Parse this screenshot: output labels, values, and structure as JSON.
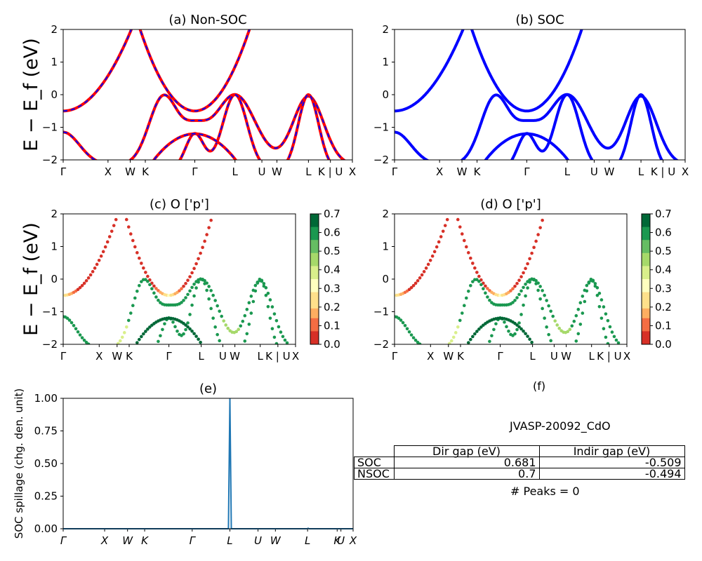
{
  "chart_data": [
    {
      "panel": "a",
      "type": "line",
      "title": "(a) Non-SOC",
      "ylabel": "E − E_f (eV)",
      "ylim": [
        -2,
        2
      ],
      "yticks": [
        "2",
        "1",
        "0",
        "−1",
        "−2"
      ],
      "kpath_labels": [
        "Γ",
        "X",
        "W",
        "K",
        "Γ",
        "L",
        "U",
        "W",
        "L",
        "K | U",
        "X"
      ],
      "kpath_positions": [
        0,
        0.155,
        0.232,
        0.284,
        0.455,
        0.594,
        0.687,
        0.739,
        0.848,
        0.924,
        1.0
      ],
      "series": [
        {
          "color": "#ff0000",
          "style": "solid",
          "bands": "cdo_bands"
        },
        {
          "color": "#0000ff",
          "style": "dashed",
          "bands": "cdo_bands"
        }
      ]
    },
    {
      "panel": "b",
      "type": "line",
      "title": "(b) SOC",
      "ylim": [
        -2,
        2
      ],
      "yticks": [
        "2",
        "1",
        "0",
        "−1",
        "−2"
      ],
      "kpath_labels": [
        "Γ",
        "X",
        "W",
        "K",
        "Γ",
        "L",
        "U",
        "W",
        "L",
        "K | U",
        "X"
      ],
      "series": [
        {
          "color": "#0000ff",
          "style": "solid",
          "bands": "cdo_bands"
        }
      ]
    },
    {
      "panel": "c",
      "type": "scatter",
      "title": "(c)  O ['p']",
      "ylabel": "E − E_f (eV)",
      "ylim": [
        -2,
        2
      ],
      "yticks": [
        "2",
        "1",
        "0",
        "−1",
        "−2"
      ],
      "kpath_labels": [
        "Γ",
        "X",
        "W",
        "K",
        "Γ",
        "L",
        "U",
        "W",
        "L",
        "K | U",
        "X"
      ],
      "colorbar": {
        "min": 0.0,
        "max": 0.7,
        "ticks": [
          "0.7",
          "0.6",
          "0.5",
          "0.4",
          "0.3",
          "0.2",
          "0.1",
          "0.0"
        ],
        "colormap": "RdYlGn"
      }
    },
    {
      "panel": "d",
      "type": "scatter",
      "title": "(d) O ['p']",
      "ylim": [
        -2,
        2
      ],
      "yticks": [
        "2",
        "1",
        "0",
        "−1",
        "−2"
      ],
      "kpath_labels": [
        "Γ",
        "X",
        "W",
        "K",
        "Γ",
        "L",
        "U",
        "W",
        "L",
        "K | U",
        "X"
      ],
      "colorbar": {
        "min": 0.0,
        "max": 0.7,
        "ticks": [
          "0.7",
          "0.6",
          "0.5",
          "0.4",
          "0.3",
          "0.2",
          "0.1",
          "0.0"
        ],
        "colormap": "RdYlGn"
      }
    },
    {
      "panel": "e",
      "type": "line",
      "title": "(e)",
      "ylabel": "SOC spillage (chg. den. unit)",
      "ylim": [
        0,
        1.0
      ],
      "yticks": [
        "1.00",
        "0.75",
        "0.50",
        "0.25",
        "0.00"
      ],
      "kpath_labels": [
        "Γ",
        "X",
        "W",
        "K",
        "Γ",
        "L",
        "U",
        "W",
        "L",
        "K",
        "U",
        "X"
      ],
      "kpath_positions": [
        0,
        0.143,
        0.222,
        0.281,
        0.445,
        0.575,
        0.672,
        0.732,
        0.843,
        0.945,
        0.958,
        1.0
      ],
      "series": [
        {
          "color": "#1f77b4",
          "x": [
            0,
            0.57,
            0.575,
            0.58,
            0.842,
            0.845,
            0.848,
            1.0
          ],
          "y": [
            0,
            0,
            1.0,
            0,
            0,
            0.004,
            0,
            0
          ]
        }
      ]
    }
  ],
  "panel_f": {
    "title": "(f)",
    "material": "JVASP-20092_CdO",
    "table": {
      "col_headers": [
        "Dir gap (eV)",
        "Indir gap (eV)"
      ],
      "rows": [
        {
          "label": "SOC",
          "dir": "0.681",
          "indir": "-0.509"
        },
        {
          "label": "NSOC",
          "dir": "0.7",
          "indir": "-0.494"
        }
      ]
    },
    "peaks": "# Peaks = 0"
  }
}
